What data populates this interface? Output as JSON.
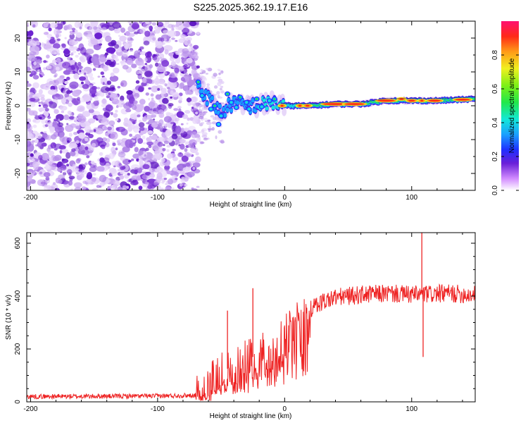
{
  "title": "S225.2025.362.19.17.E16",
  "colors": {
    "snr_line": "#ee2222",
    "axis": "#000000",
    "background": "#ffffff",
    "noise_purple": "#7a2fd8",
    "noise_light": "#c8a8f0"
  },
  "chart_data": [
    {
      "type": "heatmap",
      "name": "spectrogram",
      "title": "S225.2025.362.19.17.E16",
      "xlabel": "Height of straight line (km)",
      "ylabel": "Frequency (Hz)",
      "xlim": [
        -203,
        150
      ],
      "ylim": [
        -25,
        25
      ],
      "x_ticks": [
        -200,
        -100,
        0,
        100
      ],
      "y_ticks": [
        -20,
        -10,
        0,
        10,
        20
      ],
      "noise_region_x": [
        -203,
        -68
      ],
      "signal_track": [
        {
          "x": -68,
          "y": 6
        },
        {
          "x": -60,
          "y": 2
        },
        {
          "x": -50,
          "y": -2
        },
        {
          "x": -40,
          "y": 1
        },
        {
          "x": -30,
          "y": 0
        },
        {
          "x": -20,
          "y": 0
        },
        {
          "x": -10,
          "y": 1
        },
        {
          "x": 0,
          "y": 0
        },
        {
          "x": 20,
          "y": 0
        },
        {
          "x": 40,
          "y": 0.5
        },
        {
          "x": 60,
          "y": 0.5
        },
        {
          "x": 80,
          "y": 1.5
        },
        {
          "x": 100,
          "y": 1.5
        },
        {
          "x": 120,
          "y": 1.5
        },
        {
          "x": 150,
          "y": 2
        }
      ],
      "colorbar": {
        "label": "Normalized spectral amplitude",
        "range": [
          0,
          1
        ],
        "ticks": [
          "0.0",
          "0.2",
          "0.4",
          "0.6",
          "0.8"
        ],
        "tick_values": [
          0.0,
          0.2,
          0.4,
          0.6,
          0.8
        ]
      }
    },
    {
      "type": "line",
      "name": "snr",
      "xlabel": "Height of straight line (km)",
      "ylabel": "SNR (10 * v/v)",
      "xlim": [
        -203,
        150
      ],
      "ylim": [
        0,
        640
      ],
      "x_ticks": [
        -200,
        -100,
        0,
        100
      ],
      "y_ticks": [
        0,
        200,
        400,
        600
      ],
      "trend": [
        {
          "x": -203,
          "y": 20
        },
        {
          "x": -100,
          "y": 22
        },
        {
          "x": -70,
          "y": 25
        },
        {
          "x": -60,
          "y": 60
        },
        {
          "x": -50,
          "y": 110
        },
        {
          "x": -40,
          "y": 140
        },
        {
          "x": -30,
          "y": 160
        },
        {
          "x": -20,
          "y": 180
        },
        {
          "x": -10,
          "y": 210
        },
        {
          "x": 0,
          "y": 250
        },
        {
          "x": 10,
          "y": 300
        },
        {
          "x": 20,
          "y": 350
        },
        {
          "x": 30,
          "y": 380
        },
        {
          "x": 40,
          "y": 395
        },
        {
          "x": 60,
          "y": 405
        },
        {
          "x": 80,
          "y": 410
        },
        {
          "x": 100,
          "y": 405
        },
        {
          "x": 130,
          "y": 410
        },
        {
          "x": 150,
          "y": 405
        }
      ],
      "spikes": [
        {
          "x": -45,
          "y": 345
        },
        {
          "x": -25,
          "y": 430
        },
        {
          "x": 108,
          "y": 640
        },
        {
          "x": 109,
          "y": 170
        }
      ]
    }
  ]
}
